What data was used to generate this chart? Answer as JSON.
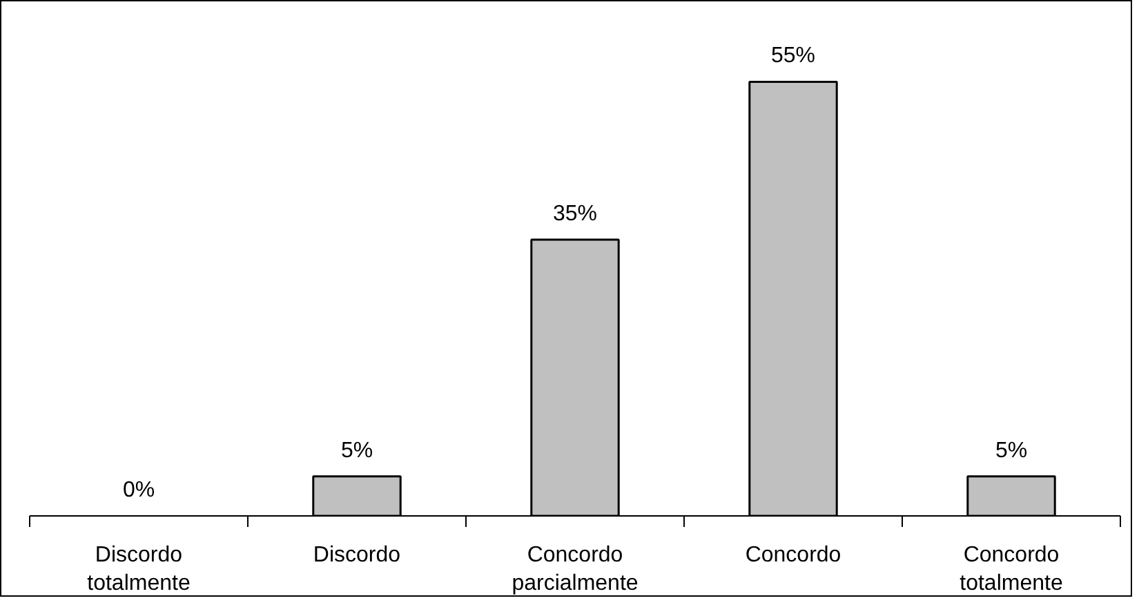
{
  "chart_data": {
    "type": "bar",
    "categories": [
      "Discordo\ntotalmente",
      "Discordo",
      "Concordo\nparcialmente",
      "Concordo",
      "Concordo\ntotalmente"
    ],
    "values": [
      0,
      5,
      35,
      55,
      5
    ],
    "value_labels": [
      "0%",
      "5%",
      "35%",
      "55%",
      "5%"
    ],
    "color": "#c0c0c0",
    "grid": false
  }
}
